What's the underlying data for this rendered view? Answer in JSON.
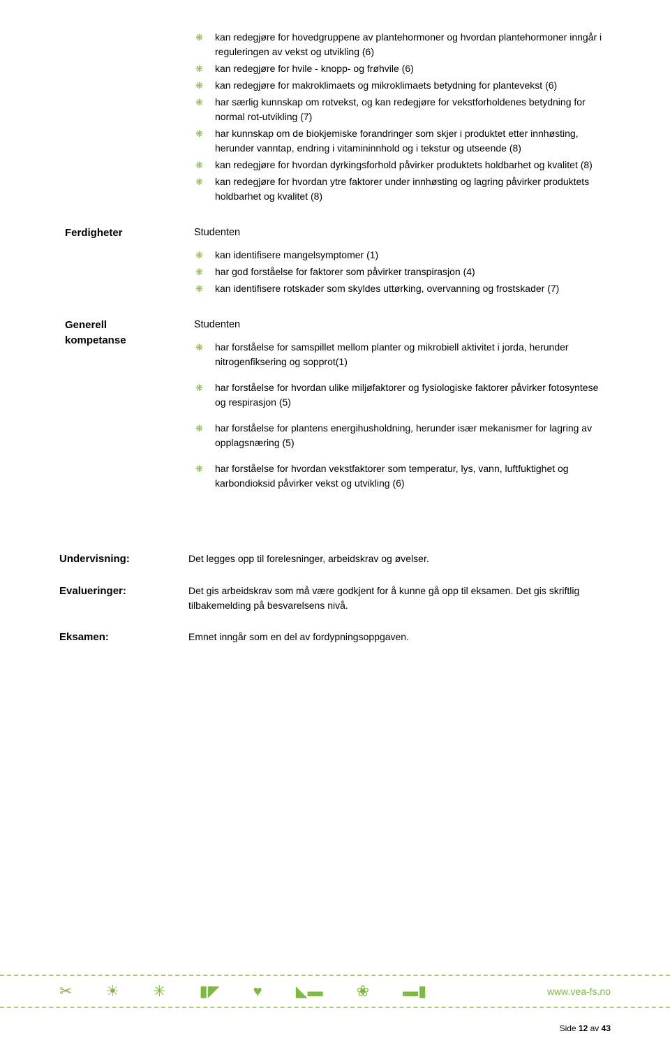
{
  "colors": {
    "accent": "#7fb843",
    "dash": "#a7cc6f",
    "text": "#000000",
    "bg": "#ffffff"
  },
  "typography": {
    "body_family": "Verdana",
    "body_size_pt": 11,
    "label_weight": "bold"
  },
  "rows": {
    "block1": {
      "label": "",
      "items": [
        "kan redegjøre for hovedgruppene av plantehormoner og hvordan plantehormoner inngår i reguleringen av vekst og utvikling (6)",
        "kan redegjøre for hvile - knopp- og frøhvile (6)",
        "kan redegjøre for makroklimaets og mikroklimaets betydning for plantevekst (6)",
        "har særlig kunnskap om rotvekst, og kan redegjøre for vekstforholdenes betydning for normal rot-utvikling (7)",
        "har kunnskap om de biokjemiske forandringer som skjer i produktet etter innhøsting, herunder vanntap, endring i vitamininnhold og i tekstur og utseende (8)",
        "kan redegjøre for hvordan dyrkingsforhold påvirker produktets holdbarhet og kvalitet (8)",
        "kan redegjøre for hvordan ytre faktorer under innhøsting og lagring påvirker produktets holdbarhet og kvalitet (8)"
      ]
    },
    "ferdigheter": {
      "label": "Ferdigheter",
      "lead": "Studenten",
      "items": [
        "kan identifisere mangelsymptomer (1)",
        "har god forståelse for faktorer som påvirker transpirasjon (4)",
        "kan identifisere rotskader som skyldes uttørking, overvanning og frostskader (7)"
      ]
    },
    "generell": {
      "label_line1": "Generell",
      "label_line2": "kompetanse",
      "lead": "Studenten",
      "items": [
        "har forståelse for samspillet mellom planter og mikrobiell aktivitet i jorda, herunder nitrogenfiksering og sopprot(1)",
        "har forståelse for hvordan ulike miljøfaktorer og fysiologiske faktorer påvirker fotosyntese og respirasjon (5)",
        "har forståelse for plantens energihusholdning, herunder især mekanismer for lagring av opplagsnæring (5)",
        "har forståelse for hvordan vekstfaktorer som temperatur, lys, vann, luftfuktighet og karbondioksid påvirker vekst og utvikling (6)"
      ]
    }
  },
  "lower": {
    "undervisning": {
      "label": "Undervisning:",
      "text": "Det legges opp til forelesninger, arbeidskrav og øvelser."
    },
    "evalueringer": {
      "label": "Evalueringer:",
      "text": "Det gis arbeidskrav som må være godkjent for å kunne gå opp til eksamen. Det gis skriftlig tilbakemelding på besvarelsens nivå."
    },
    "eksamen": {
      "label": "Eksamen:",
      "text": "Emnet inngår som en del av fordypningsoppgaven."
    }
  },
  "footer": {
    "link": "www.vea-fs.no",
    "icons": [
      "scissors-icon",
      "sun-icon",
      "cross-sun-icon",
      "trowel-icon",
      "heart-icon",
      "shovel-icon",
      "flower-icon",
      "hammer-icon"
    ]
  },
  "pagefoot": {
    "prefix": "Side ",
    "page": "12",
    "mid": " av ",
    "total": "43"
  }
}
